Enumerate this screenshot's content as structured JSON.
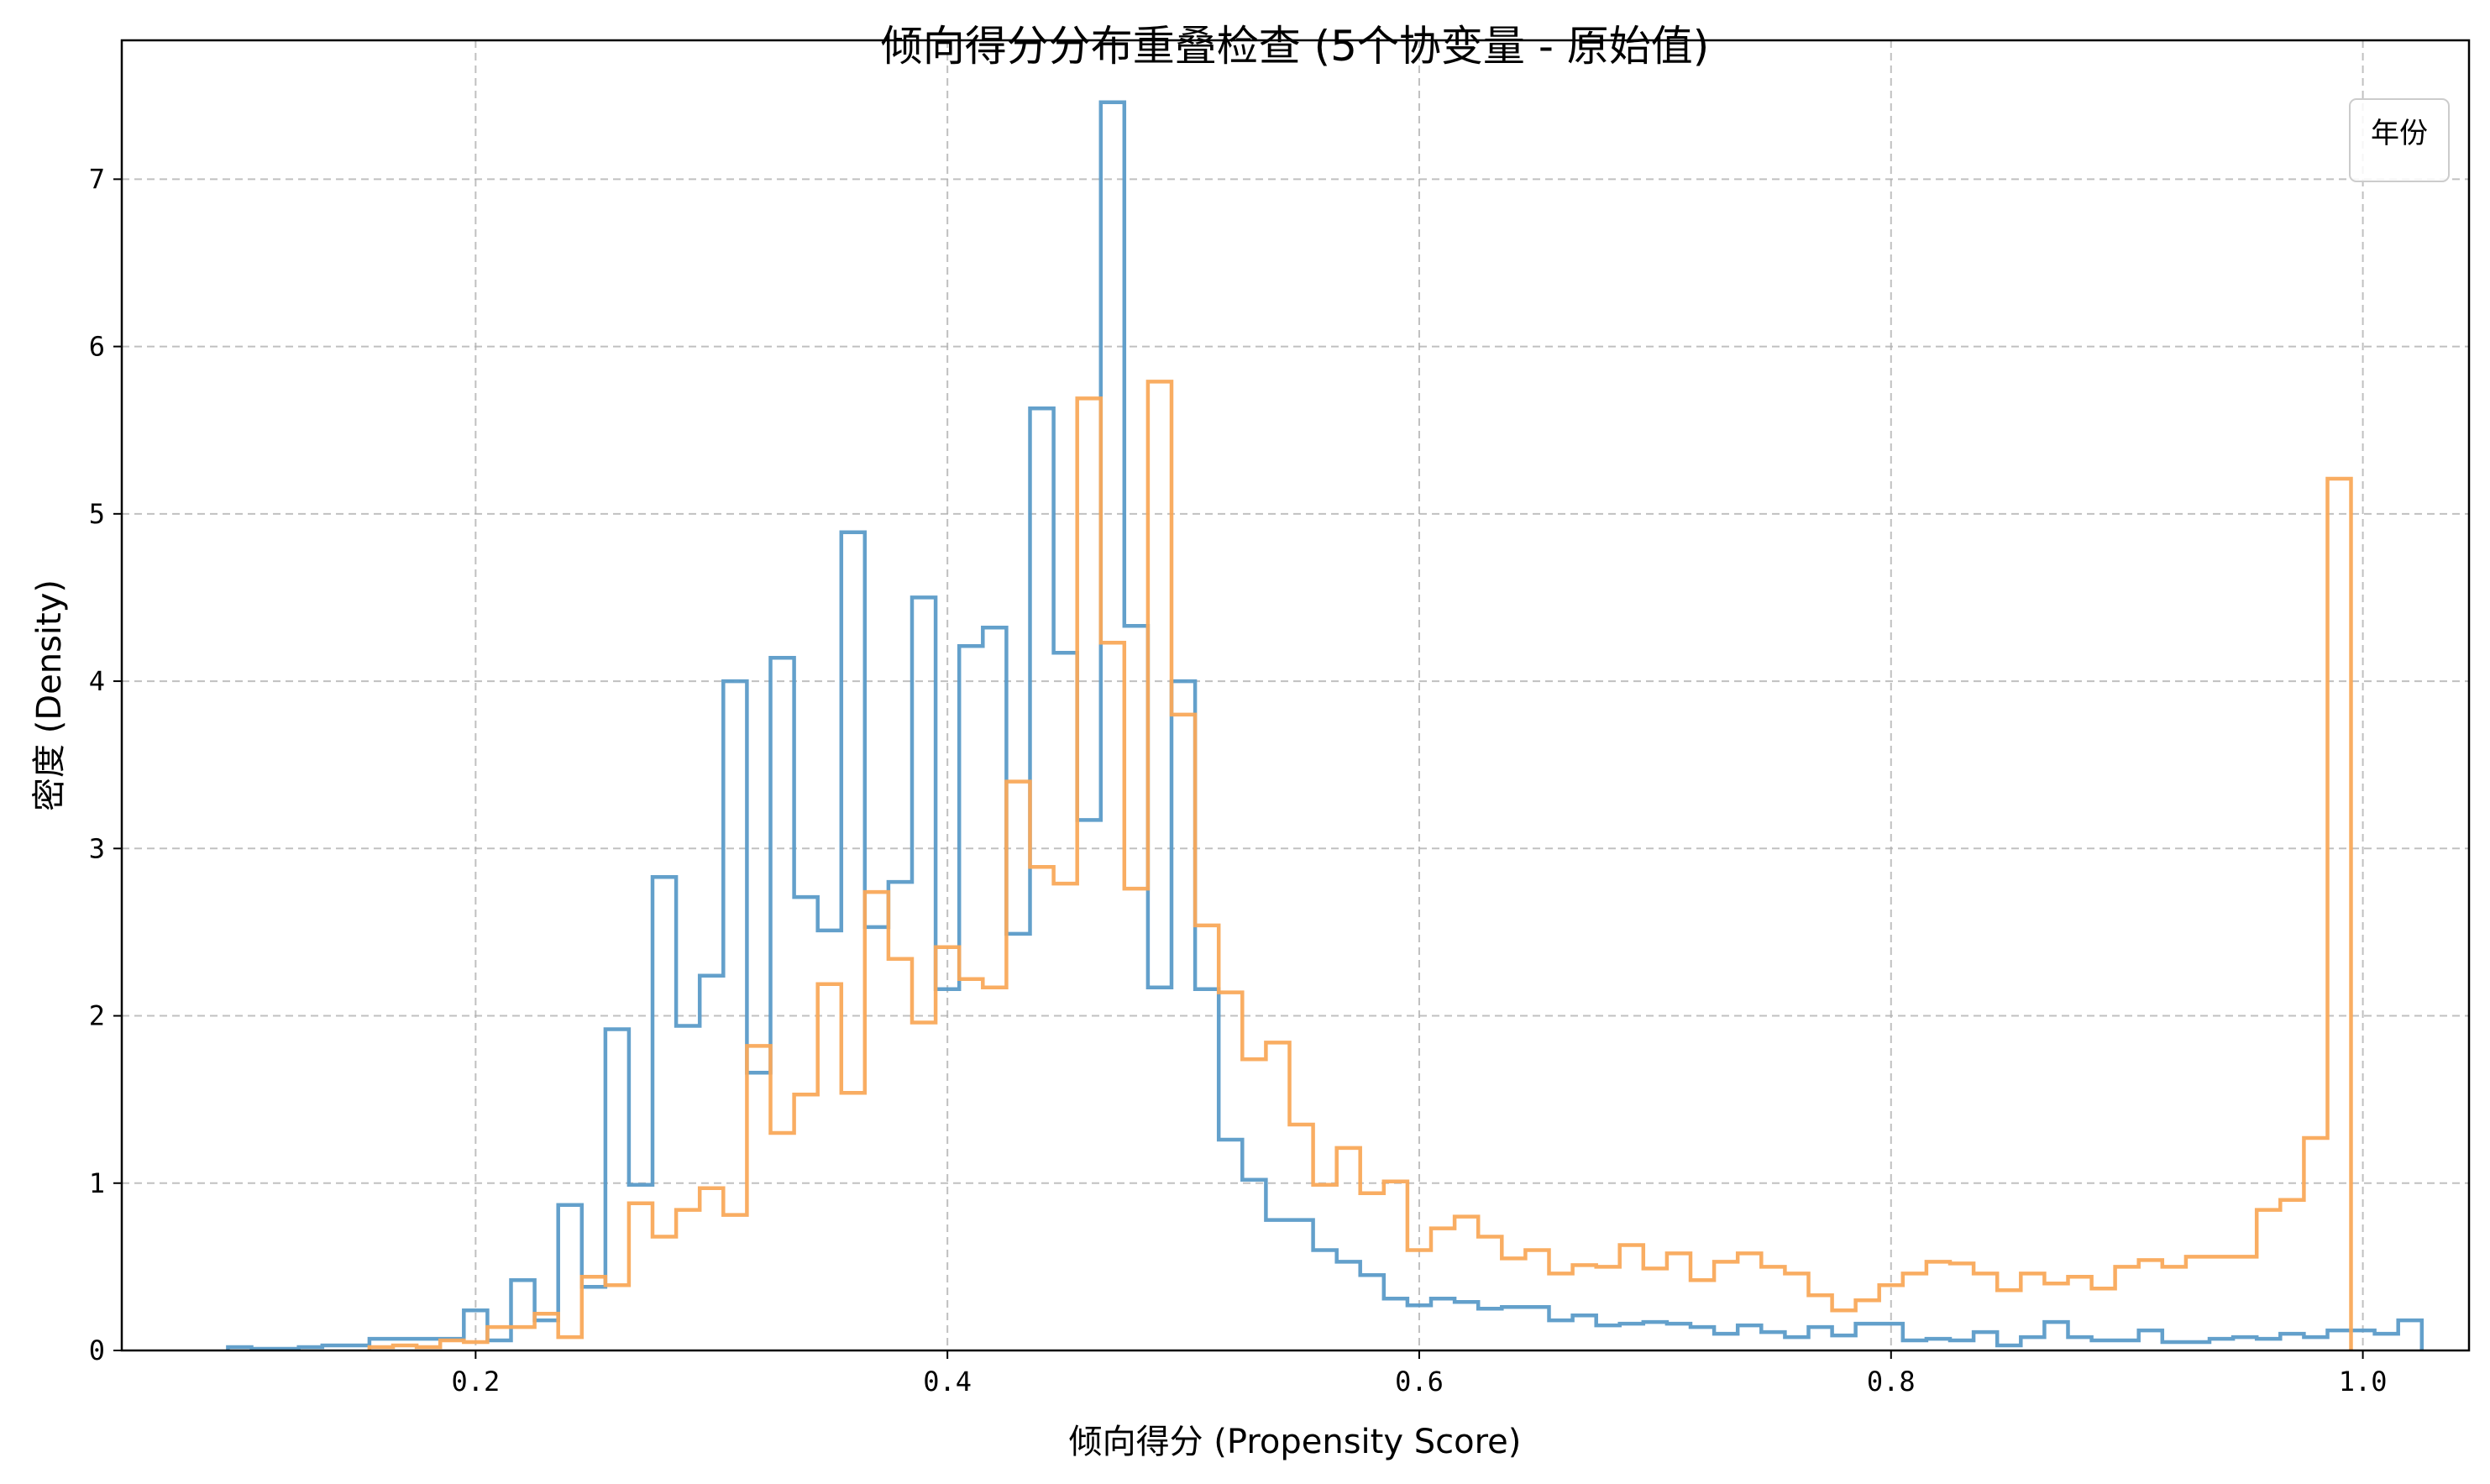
{
  "chart_data": {
    "type": "histogram",
    "title": "倾向得分分布重叠检查 (5个协变量 - 原始值)",
    "xlabel": "倾向得分 (Propensity Score)",
    "ylabel": "密度 (Density)",
    "xlim": [
      0.05,
      1.045
    ],
    "ylim": [
      0,
      7.83
    ],
    "xticks": [
      0.2,
      0.4,
      0.6,
      0.8,
      1.0
    ],
    "xtick_labels": [
      "0.2",
      "0.4",
      "0.6",
      "0.8",
      "1.0"
    ],
    "yticks": [
      0,
      1,
      2,
      3,
      4,
      5,
      6,
      7
    ],
    "ytick_labels": [
      "0",
      "1",
      "2",
      "3",
      "4",
      "5",
      "6",
      "7"
    ],
    "grid": true,
    "legend": {
      "title": "年份",
      "placement": "top-right"
    },
    "series": [
      {
        "color": "#5b9bc8",
        "bin_start": 0.095,
        "bin_width": 0.01,
        "values": [
          0.02,
          0.01,
          0.01,
          0.02,
          0.03,
          0.03,
          0.07,
          0.07,
          0.07,
          0.07,
          0.24,
          0.06,
          0.42,
          0.18,
          0.87,
          0.38,
          1.92,
          0.99,
          2.83,
          1.94,
          2.24,
          4.0,
          1.66,
          4.14,
          2.71,
          2.51,
          4.89,
          2.53,
          2.8,
          4.5,
          2.16,
          4.21,
          4.32,
          2.49,
          5.63,
          4.17,
          3.17,
          7.46,
          4.33,
          2.17,
          4.0,
          2.16,
          1.26,
          1.02,
          0.78,
          0.78,
          0.6,
          0.53,
          0.45,
          0.31,
          0.27,
          0.31,
          0.29,
          0.25,
          0.26,
          0.26,
          0.18,
          0.21,
          0.15,
          0.16,
          0.17,
          0.16,
          0.14,
          0.1,
          0.15,
          0.11,
          0.08,
          0.14,
          0.09,
          0.16,
          0.16,
          0.06,
          0.07,
          0.06,
          0.11,
          0.03,
          0.08,
          0.17,
          0.08,
          0.06,
          0.06,
          0.12,
          0.05,
          0.05,
          0.07,
          0.08,
          0.07,
          0.1,
          0.08,
          0.12,
          0.12,
          0.1,
          0.18
        ]
      },
      {
        "color": "#f9a95a",
        "bin_start": 0.155,
        "bin_width": 0.01,
        "values": [
          0.02,
          0.03,
          0.02,
          0.06,
          0.05,
          0.14,
          0.14,
          0.22,
          0.08,
          0.44,
          0.39,
          0.88,
          0.68,
          0.84,
          0.97,
          0.81,
          1.82,
          1.3,
          1.53,
          2.19,
          1.54,
          2.74,
          2.34,
          1.96,
          2.41,
          2.22,
          2.17,
          3.4,
          2.89,
          2.79,
          5.69,
          4.23,
          2.76,
          5.79,
          3.8,
          2.54,
          2.14,
          1.74,
          1.84,
          1.35,
          0.99,
          1.21,
          0.94,
          1.01,
          0.6,
          0.73,
          0.8,
          0.68,
          0.55,
          0.6,
          0.46,
          0.51,
          0.5,
          0.63,
          0.49,
          0.58,
          0.42,
          0.53,
          0.58,
          0.5,
          0.46,
          0.33,
          0.24,
          0.3,
          0.39,
          0.46,
          0.53,
          0.52,
          0.46,
          0.36,
          0.46,
          0.4,
          0.44,
          0.37,
          0.5,
          0.54,
          0.5,
          0.56,
          0.56,
          0.56,
          0.84,
          0.9,
          1.27,
          5.21
        ]
      }
    ]
  }
}
